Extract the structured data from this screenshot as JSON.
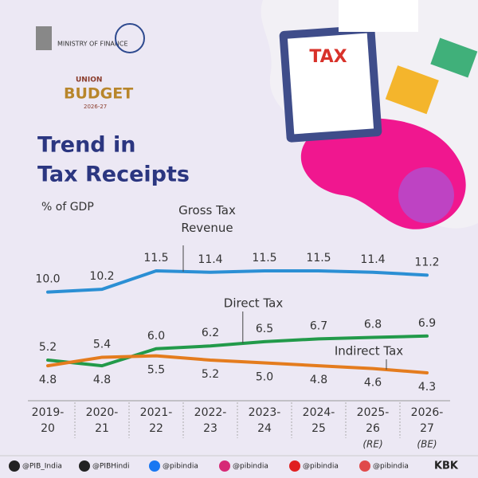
{
  "header": {
    "ministry": "MINISTRY OF FINANCE",
    "budget_top": "UNION",
    "budget": "BUDGET",
    "budget_year": "2026-27",
    "tax_sign": "TAX"
  },
  "chart_data": {
    "type": "line",
    "title": [
      "Trend in",
      "Tax Receipts"
    ],
    "subtitle": "% of GDP",
    "categories": [
      [
        "2019-",
        "20"
      ],
      [
        "2020-",
        "21"
      ],
      [
        "2021-",
        "22"
      ],
      [
        "2022-",
        "23"
      ],
      [
        "2023-",
        "24"
      ],
      [
        "2024-",
        "25"
      ],
      [
        "2025-",
        "26",
        "(RE)"
      ],
      [
        "2026-",
        "27",
        "(BE)"
      ]
    ],
    "series": [
      {
        "name": "Gross Tax Revenue",
        "color": "#2b8fd4",
        "values": [
          10.0,
          10.2,
          11.5,
          11.4,
          11.5,
          11.5,
          11.4,
          11.2
        ],
        "value_labels": [
          "10.0",
          "10.2",
          "11.5",
          "11.4",
          "11.5",
          "11.5",
          "11.4",
          "11.2"
        ]
      },
      {
        "name": "Direct Tax",
        "color": "#229a4a",
        "values": [
          5.2,
          4.8,
          6.0,
          6.2,
          6.5,
          6.7,
          6.8,
          6.9
        ],
        "value_labels": [
          "5.2",
          "4.8",
          "6.0",
          "6.2",
          "6.5",
          "6.7",
          "6.8",
          "6.9"
        ]
      },
      {
        "name": "Indirect Tax",
        "color": "#e47c1e",
        "values": [
          4.8,
          5.4,
          5.5,
          5.2,
          5.0,
          4.8,
          4.6,
          4.3
        ],
        "value_labels": [
          "4.8",
          "5.4",
          "5.5",
          "5.2",
          "5.0",
          "4.8",
          "4.6",
          "4.3"
        ]
      }
    ]
  },
  "footer": {
    "handles": [
      "@PIB_India",
      "@PIBHindi",
      "@pibindia",
      "@pibindia",
      "@pibindia",
      "@pibindia"
    ],
    "signature": "KBK"
  }
}
